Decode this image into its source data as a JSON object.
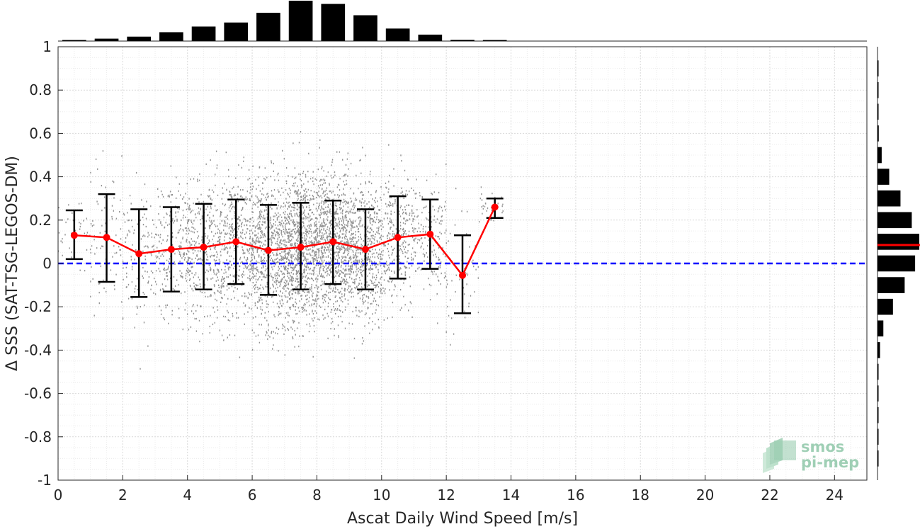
{
  "chart_data": {
    "type": "scatter",
    "xlabel": "Ascat Daily Wind Speed [m/s]",
    "ylabel": "Δ SSS (SAT-TSG-LEGOS-DM)",
    "xlim": [
      0,
      25
    ],
    "ylim": [
      -1,
      1
    ],
    "x_ticks": [
      "0",
      "2",
      "4",
      "6",
      "8",
      "10",
      "12",
      "14",
      "16",
      "18",
      "20",
      "22",
      "24"
    ],
    "y_ticks": [
      "1",
      "0.8",
      "0.6",
      "0.4",
      "0.2",
      "0",
      "-0.2",
      "-0.4",
      "-0.6",
      "-0.8",
      "-1"
    ],
    "grid": true,
    "minor_grid": true,
    "reference_line": {
      "y": 0,
      "style": "dashed",
      "color": "#0000ff"
    },
    "scatter_color": "#808080",
    "mean_color": "#ff0000",
    "errorbar_color": "#000000",
    "binned": {
      "x": [
        0.5,
        1.5,
        2.5,
        3.5,
        4.5,
        5.5,
        6.5,
        7.5,
        8.5,
        9.5,
        10.5,
        11.5,
        12.5,
        13.5
      ],
      "mean": [
        0.13,
        0.12,
        0.045,
        0.065,
        0.075,
        0.1,
        0.06,
        0.075,
        0.1,
        0.065,
        0.12,
        0.135,
        -0.055,
        0.26
      ],
      "upper": [
        0.245,
        0.32,
        0.25,
        0.26,
        0.275,
        0.295,
        0.27,
        0.28,
        0.29,
        0.25,
        0.31,
        0.295,
        0.13,
        0.3
      ],
      "lower": [
        0.02,
        -0.085,
        -0.155,
        -0.13,
        -0.12,
        -0.095,
        -0.145,
        -0.12,
        -0.095,
        -0.12,
        -0.07,
        -0.025,
        -0.23,
        0.21
      ]
    },
    "top_histogram": {
      "bin_centers": [
        0.5,
        1.5,
        2.5,
        3.5,
        4.5,
        5.5,
        6.5,
        7.5,
        8.5,
        9.5,
        10.5,
        11.5,
        12.5,
        13.5
      ],
      "relative_counts": [
        0.02,
        0.06,
        0.11,
        0.22,
        0.36,
        0.46,
        0.7,
        1.0,
        0.92,
        0.64,
        0.31,
        0.16,
        0.03,
        0.01
      ]
    },
    "right_histogram": {
      "bin_centers": [
        0.9,
        0.8,
        0.7,
        0.6,
        0.5,
        0.4,
        0.3,
        0.2,
        0.1,
        0.0,
        -0.1,
        -0.2,
        -0.3,
        -0.4,
        -0.5,
        -0.6,
        -0.7,
        -0.8,
        -0.9
      ],
      "relative_counts": [
        0.005,
        0.01,
        0.015,
        0.03,
        0.1,
        0.28,
        0.55,
        0.82,
        1.0,
        0.9,
        0.65,
        0.37,
        0.14,
        0.06,
        0.02,
        0.01,
        0.005,
        0.005,
        0.003
      ],
      "median": 0.085
    }
  },
  "logo": {
    "line1": "smos",
    "line2": "pi-mep",
    "color": "#9fcfb5"
  }
}
